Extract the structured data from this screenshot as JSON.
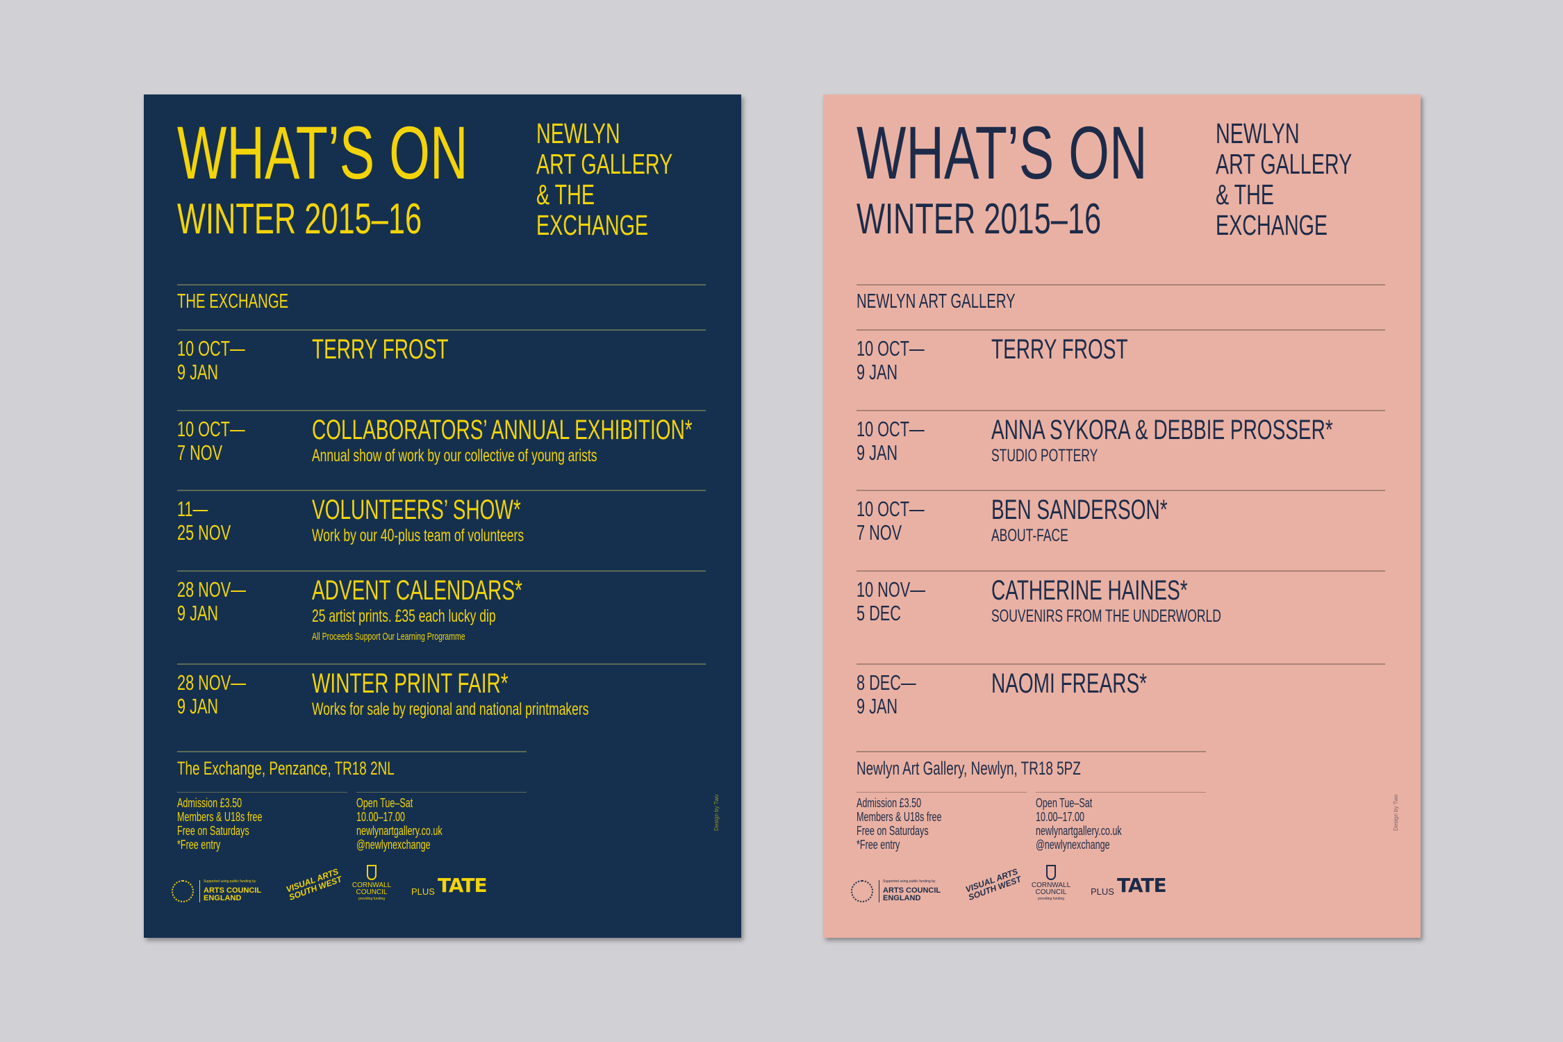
{
  "colors": {
    "background": "#d1d0d4",
    "navy": "#15304f",
    "yellow": "#f3d40a",
    "pink": "#e9b1a3",
    "navy_text": "#1d2b49"
  },
  "posters": [
    {
      "heading": "WHAT’S ON",
      "season": "WINTER 2015–16",
      "venue_lines": [
        "NEWLYN",
        "ART GALLERY",
        "& THE",
        "EXCHANGE"
      ],
      "section": "THE EXCHANGE",
      "rows": [
        {
          "date1": "10 OCT—",
          "date2": "9 JAN",
          "title": "TERRY FROST",
          "sub": "",
          "note": ""
        },
        {
          "date1": "10 OCT—",
          "date2": "7 NOV",
          "title": "COLLABORATORS’ ANNUAL EXHIBITION*",
          "sub": "Annual show of work by our collective of young arists",
          "note": ""
        },
        {
          "date1": "11—",
          "date2": "25 NOV",
          "title": "VOLUNTEERS’ SHOW*",
          "sub": "Work by our 40-plus team of volunteers",
          "note": ""
        },
        {
          "date1": "28 NOV—",
          "date2": "9 JAN",
          "title": "ADVENT CALENDARS*",
          "sub": "25 artist prints. £35 each lucky dip",
          "note": "All Proceeds Support Our Learning Programme"
        },
        {
          "date1": "28 NOV—",
          "date2": "9 JAN",
          "title": "WINTER PRINT FAIR*",
          "sub": "Works for sale by regional and national printmakers",
          "note": ""
        }
      ],
      "address": "The Exchange, Penzance, TR18 2NL",
      "info_left": [
        "Admission £3.50",
        "Members & U18s free",
        "Free on Saturdays",
        "*Free entry"
      ],
      "info_right": [
        "Open Tue–Sat",
        "10.00–17.00",
        "newlynartgallery.co.uk",
        "@newlynexchange"
      ],
      "credit": "Design by Two"
    },
    {
      "heading": "WHAT’S ON",
      "season": "WINTER 2015–16",
      "venue_lines": [
        "NEWLYN",
        "ART GALLERY",
        "& THE",
        "EXCHANGE"
      ],
      "section": "NEWLYN ART GALLERY",
      "rows": [
        {
          "date1": "10 OCT—",
          "date2": "9 JAN",
          "title": "TERRY FROST",
          "sub": "",
          "note": ""
        },
        {
          "date1": "10 OCT—",
          "date2": "9 JAN",
          "title": "ANNA SYKORA & DEBBIE PROSSER*",
          "sub": "STUDIO POTTERY",
          "note": ""
        },
        {
          "date1": "10 OCT—",
          "date2": "7 NOV",
          "title": "BEN SANDERSON*",
          "sub": "ABOUT-FACE",
          "note": ""
        },
        {
          "date1": "10 NOV—",
          "date2": "5 DEC",
          "title": "CATHERINE HAINES*",
          "sub": "SOUVENIRS FROM THE UNDERWORLD",
          "note": ""
        },
        {
          "date1": "8 DEC—",
          "date2": "9 JAN",
          "title": "NAOMI FREARS*",
          "sub": "",
          "note": ""
        }
      ],
      "address": "Newlyn Art Gallery, Newlyn, TR18 5PZ",
      "info_left": [
        "Admission £3.50",
        "Members & U18s free",
        "Free on Saturdays",
        "*Free entry"
      ],
      "info_right": [
        "Open Tue–Sat",
        "10.00–17.00",
        "newlynartgallery.co.uk",
        "@newlynexchange"
      ],
      "credit": "Design by Two"
    }
  ],
  "logos": {
    "ace_support": "Supported using public funding by",
    "ace_name": "ARTS COUNCIL ENGLAND",
    "ace_ring": "ARTS COUNCIL ENGLAND",
    "vasw": "VISUAL ARTS SOUTH WEST",
    "cornwall": "CORNWALL COUNCIL",
    "cornwall_sub": "providing funding",
    "plus": "PLUS",
    "tate": "TATE"
  }
}
